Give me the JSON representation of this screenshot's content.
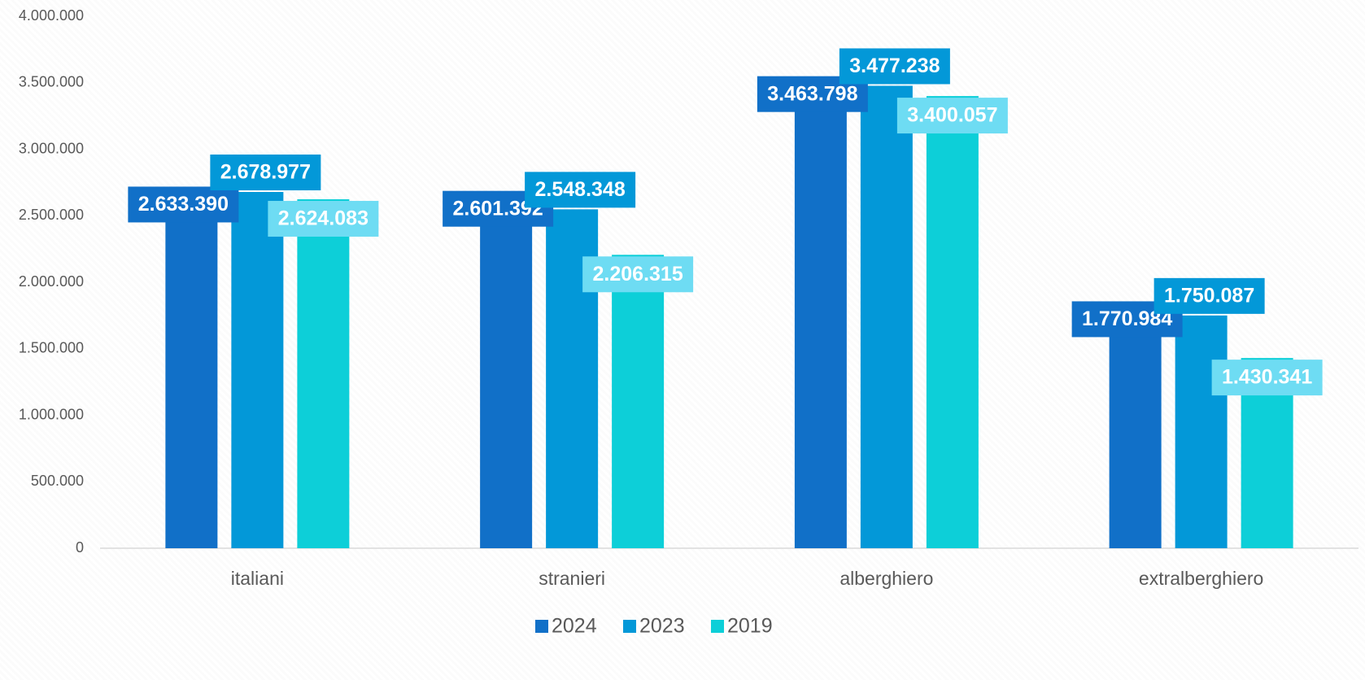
{
  "chart_data": {
    "type": "bar",
    "categories": [
      "italiani",
      "stranieri",
      "alberghiero",
      "extralberghiero"
    ],
    "series": [
      {
        "name": "2024",
        "color": "#1170c8",
        "values": [
          2633390,
          2601392,
          3463798,
          1770984
        ],
        "value_labels": [
          "2.633.390",
          "2.601.392",
          "3.463.798",
          "1.770.984"
        ]
      },
      {
        "name": "2023",
        "color": "#0398d8",
        "values": [
          2678977,
          2548348,
          3477238,
          1750087
        ],
        "value_labels": [
          "2.678.977",
          "2.548.348",
          "3.477.238",
          "1.750.087"
        ]
      },
      {
        "name": "2019",
        "color": "#0dcfd8",
        "values": [
          2624083,
          2206315,
          3400057,
          1430341
        ],
        "value_labels": [
          "2.624.083",
          "2.206.315",
          "3.400.057",
          "1.430.341"
        ]
      }
    ],
    "ylim": [
      0,
      4000000
    ],
    "yticks": [
      0,
      {
        "value": 500000,
        "label": "500.000"
      },
      {
        "value": 1000000,
        "label": "1.000.000"
      },
      {
        "value": 1500000,
        "label": "1.500.000"
      },
      {
        "value": 2000000,
        "label": "2.000.000"
      },
      {
        "value": 2500000,
        "label": "2.500.000"
      },
      {
        "value": 3000000,
        "label": "3.000.000"
      },
      {
        "value": 3500000,
        "label": "3.500.000"
      },
      {
        "value": 4000000,
        "label": "4.000.000"
      }
    ],
    "legend": "bottom"
  }
}
